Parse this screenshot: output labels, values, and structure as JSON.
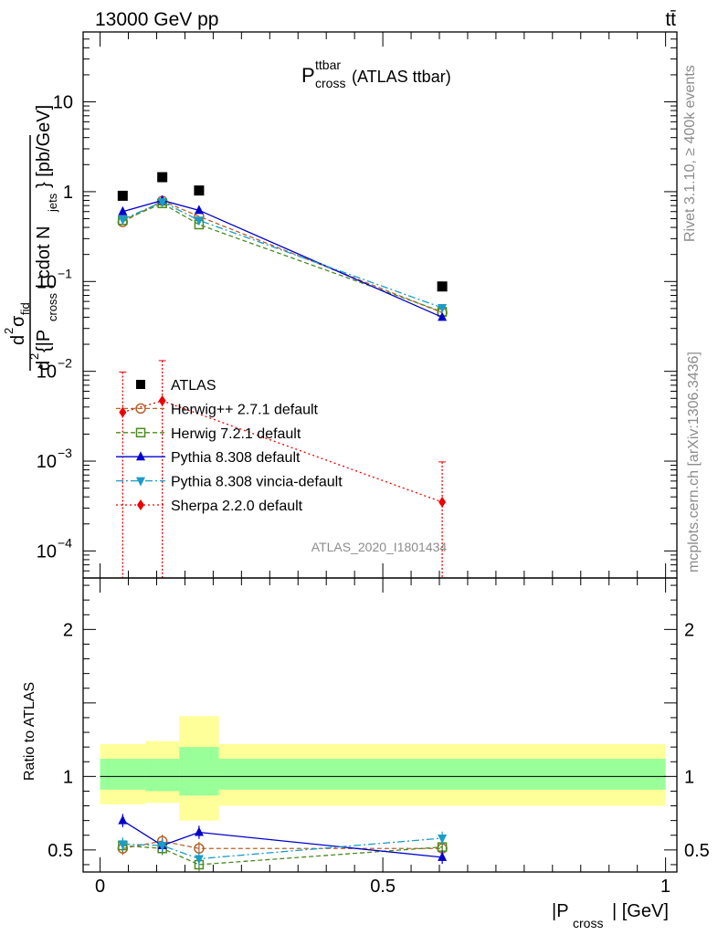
{
  "header": {
    "energy_label": "13000 GeV pp",
    "process_label": "tt̄"
  },
  "side_labels": {
    "rivet": "Rivet 3.1.10, ≥ 400k events",
    "mcplots": "mcplots.cern.ch [arXiv:1306.3436]"
  },
  "watermark": "ATLAS_2020_I1801434",
  "colors": {
    "ATLAS": "#000000",
    "Herwig++": "#b8622a",
    "Herwig7": "#4b8a1f",
    "Pythia": "#0000cc",
    "Vincia": "#1a9cc9",
    "Sherpa": "#ee0000",
    "band_outer": "#ffff99",
    "band_inner": "#99ff99"
  },
  "chart_data": [
    {
      "type": "scatter",
      "title_main": "P",
      "title_sup": "ttbar",
      "title_sub": "cross",
      "title_suffix": "(ATLAS ttbar)",
      "ylabel_parts": [
        "d",
        "2",
        "σ",
        "fid",
        "d",
        "2",
        "{|P",
        "cross",
        "| cdot N",
        "jets",
        "} [pb/GeV]"
      ],
      "yscale": "log",
      "ylim": [
        5e-05,
        60
      ],
      "xlim": [
        -0.03,
        1.02
      ],
      "yticks": [
        {
          "v": 10,
          "base": "10",
          "exp": ""
        },
        {
          "v": 1,
          "base": "1",
          "exp": ""
        },
        {
          "v": 0.1,
          "base": "10",
          "exp": "−1"
        },
        {
          "v": 0.01,
          "base": "10",
          "exp": "−2"
        },
        {
          "v": 0.001,
          "base": "10",
          "exp": "−3"
        },
        {
          "v": 0.0001,
          "base": "10",
          "exp": "−4"
        }
      ],
      "x": [
        0.04,
        0.11,
        0.175,
        0.605
      ],
      "series": [
        {
          "name": "ATLAS",
          "key": "ATLAS",
          "marker": "square",
          "line": "none",
          "values": [
            0.9,
            1.45,
            1.03,
            0.088
          ]
        },
        {
          "name": "Herwig++ 2.7.1 default",
          "key": "Herwig++",
          "marker": "circle-open",
          "line": "dashed",
          "values": [
            0.46,
            0.79,
            0.53,
            0.045
          ]
        },
        {
          "name": "Herwig 7.2.1 default",
          "key": "Herwig7",
          "marker": "square-open",
          "line": "dashed",
          "values": [
            0.48,
            0.74,
            0.43,
            0.046
          ]
        },
        {
          "name": "Pythia 8.308 default",
          "key": "Pythia",
          "marker": "triangle-up",
          "line": "solid",
          "values": [
            0.6,
            0.8,
            0.62,
            0.04
          ]
        },
        {
          "name": "Pythia 8.308 vincia-default",
          "key": "Vincia",
          "marker": "triangle-down",
          "line": "dashdot",
          "values": [
            0.49,
            0.77,
            0.48,
            0.051
          ]
        },
        {
          "name": "Sherpa 2.2.0 default",
          "key": "Sherpa",
          "marker": "diamond",
          "line": "dotted",
          "values": [
            0.0035,
            0.0047,
            null,
            0.00035
          ]
        }
      ],
      "legend_position": "center-left"
    },
    {
      "type": "line",
      "ylabel": "Ratio to ATLAS",
      "xlabel_main": "|P",
      "xlabel_sub": "cross",
      "xlabel_suffix": "| [GeV]",
      "ylim": [
        0.35,
        2.35
      ],
      "xlim": [
        -0.03,
        1.02
      ],
      "xticks": [
        {
          "v": 0,
          "label": "0"
        },
        {
          "v": 0.5,
          "label": "0.5"
        },
        {
          "v": 1,
          "label": "1"
        }
      ],
      "yticks": [
        {
          "v": 0.5,
          "label": "0.5"
        },
        {
          "v": 1,
          "label": "1"
        },
        {
          "v": 2,
          "label": "2"
        }
      ],
      "bands": [
        {
          "x0": 0.0,
          "x1": 0.08,
          "outer": [
            0.81,
            1.22
          ],
          "inner": [
            0.91,
            1.12
          ]
        },
        {
          "x0": 0.08,
          "x1": 0.14,
          "outer": [
            0.82,
            1.24
          ],
          "inner": [
            0.9,
            1.12
          ]
        },
        {
          "x0": 0.14,
          "x1": 0.21,
          "outer": [
            0.7,
            1.41
          ],
          "inner": [
            0.87,
            1.2
          ]
        },
        {
          "x0": 0.21,
          "x1": 1.0,
          "outer": [
            0.8,
            1.22
          ],
          "inner": [
            0.91,
            1.12
          ]
        }
      ],
      "x": [
        0.04,
        0.11,
        0.175,
        0.605
      ],
      "series": [
        {
          "name": "Herwig++ 2.7.1 default",
          "key": "Herwig++",
          "marker": "circle-open",
          "line": "dashed",
          "values": [
            0.51,
            0.56,
            0.51,
            0.51
          ]
        },
        {
          "name": "Herwig 7.2.1 default",
          "key": "Herwig7",
          "marker": "square-open",
          "line": "dashed",
          "values": [
            0.53,
            0.51,
            0.4,
            0.52
          ]
        },
        {
          "name": "Pythia 8.308 default",
          "key": "Pythia",
          "marker": "triangle-up",
          "line": "solid",
          "values": [
            0.7,
            0.53,
            0.62,
            0.45
          ]
        },
        {
          "name": "Pythia 8.308 vincia-default",
          "key": "Vincia",
          "marker": "triangle-down",
          "line": "dashdot",
          "values": [
            0.54,
            0.53,
            0.44,
            0.58
          ]
        }
      ]
    }
  ]
}
